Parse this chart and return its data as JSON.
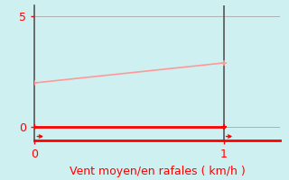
{
  "bg_color": "#cff0f0",
  "grid_color": "#b0b0b0",
  "xlabel": "Vent moyen/en rafales ( km/h )",
  "xlabel_color": "#ff0000",
  "xlabel_fontsize": 9,
  "xlim": [
    0,
    1.3
  ],
  "ylim": [
    -0.6,
    5.5
  ],
  "yticks": [
    0,
    5
  ],
  "xticks": [
    0,
    1
  ],
  "line1_x": [
    0,
    1
  ],
  "line1_y": [
    0,
    0
  ],
  "line1_color": "#ff0000",
  "line1_lw": 2.0,
  "line2_x": [
    0,
    1
  ],
  "line2_y": [
    2.0,
    2.9
  ],
  "line2_color": "#ff9999",
  "line2_lw": 1.2,
  "vline_x": 1,
  "vline_color": "#555555",
  "vline_lw": 1.2,
  "tick_color": "#ff0000",
  "tick_fontsize": 9,
  "spine_color": "#555555",
  "bottom_line_color": "#ff0000",
  "marker_size": 4
}
